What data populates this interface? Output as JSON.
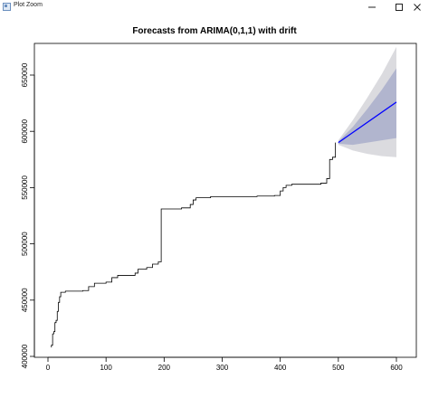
{
  "window": {
    "title": "Plot Zoom",
    "icons": {
      "app": "plot-window-icon",
      "minimize": "minimize-icon",
      "maximize": "maximize-icon",
      "close": "close-icon"
    }
  },
  "chart_data": {
    "type": "line",
    "title": "Forecasts from ARIMA(0,1,1) with drift",
    "xlabel": "",
    "ylabel": "",
    "xlim": [
      0,
      600
    ],
    "ylim": [
      400000,
      660000
    ],
    "x_ticks": [
      0,
      100,
      200,
      300,
      400,
      500,
      600
    ],
    "y_ticks": [
      400000,
      450000,
      500000,
      550000,
      600000,
      650000
    ],
    "grid": false,
    "colors": {
      "history": "#000000",
      "forecast": "#0000ff",
      "band80": "#b1b5ce",
      "band95": "#dbdbdf"
    },
    "series": [
      {
        "values": [
          [
            5,
            408500
          ],
          [
            6,
            410000
          ],
          [
            8,
            420000
          ],
          [
            10,
            422000
          ],
          [
            12,
            430000
          ],
          [
            14,
            432000
          ],
          [
            16,
            440000
          ],
          [
            18,
            448000
          ],
          [
            20,
            453000
          ],
          [
            22,
            457000
          ],
          [
            30,
            458000
          ],
          [
            60,
            458500
          ],
          [
            70,
            462000
          ],
          [
            80,
            465000
          ],
          [
            100,
            466000
          ],
          [
            110,
            470000
          ],
          [
            120,
            472000
          ],
          [
            150,
            474000
          ],
          [
            155,
            477500
          ],
          [
            170,
            479000
          ],
          [
            180,
            482000
          ],
          [
            190,
            484000
          ],
          [
            195,
            531000
          ],
          [
            230,
            532000
          ],
          [
            245,
            535000
          ],
          [
            250,
            539000
          ],
          [
            255,
            541000
          ],
          [
            280,
            542000
          ],
          [
            360,
            542500
          ],
          [
            390,
            543000
          ],
          [
            400,
            547000
          ],
          [
            405,
            550000
          ],
          [
            410,
            552000
          ],
          [
            420,
            553000
          ],
          [
            470,
            554000
          ],
          [
            480,
            558000
          ],
          [
            485,
            575000
          ],
          [
            490,
            577000
          ],
          [
            495,
            590000
          ]
        ]
      },
      {
        "values": [
          [
            500,
            590000
          ],
          [
            600,
            626000
          ]
        ]
      }
    ],
    "bands": [
      {
        "level": "95",
        "upper": [
          [
            500,
            592000
          ],
          [
            525,
            610000
          ],
          [
            550,
            630000
          ],
          [
            575,
            651000
          ],
          [
            600,
            675000
          ]
        ],
        "lower": [
          [
            500,
            588000
          ],
          [
            525,
            583000
          ],
          [
            550,
            580000
          ],
          [
            575,
            578000
          ],
          [
            600,
            577000
          ]
        ]
      },
      {
        "level": "80",
        "upper": [
          [
            500,
            591000
          ],
          [
            525,
            604000
          ],
          [
            550,
            620000
          ],
          [
            575,
            637000
          ],
          [
            600,
            656000
          ]
        ],
        "lower": [
          [
            500,
            589000
          ],
          [
            525,
            588000
          ],
          [
            550,
            590000
          ],
          [
            575,
            592000
          ],
          [
            600,
            594000
          ]
        ]
      }
    ]
  }
}
